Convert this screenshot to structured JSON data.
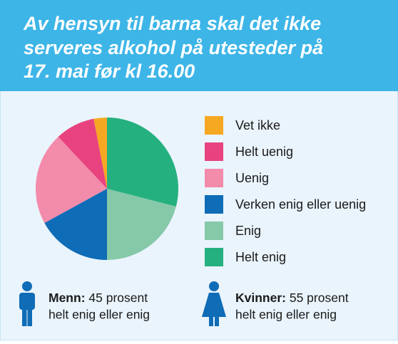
{
  "chart_data": {
    "type": "pie",
    "title": [
      "Av hensyn til barna skal det ikke",
      "serveres alkohol på utesteder på",
      "17. mai før kl 16.00"
    ],
    "categories": [
      "Vet ikke",
      "Helt uenig",
      "Uenig",
      "Verken enig eller uenig",
      "Enig",
      "Helt enig"
    ],
    "values": [
      3,
      9,
      21,
      17,
      21,
      29
    ],
    "colors": [
      "#f7a823",
      "#e8437f",
      "#f38bab",
      "#0f6cb6",
      "#86c9a9",
      "#25b07f"
    ]
  },
  "notes": [
    {
      "label": "Menn:",
      "text": "45 prosent",
      "line2": "helt enig eller enig"
    },
    {
      "label": "Kvinner:",
      "text": "55 prosent",
      "line2": "helt enig eller enig"
    }
  ]
}
